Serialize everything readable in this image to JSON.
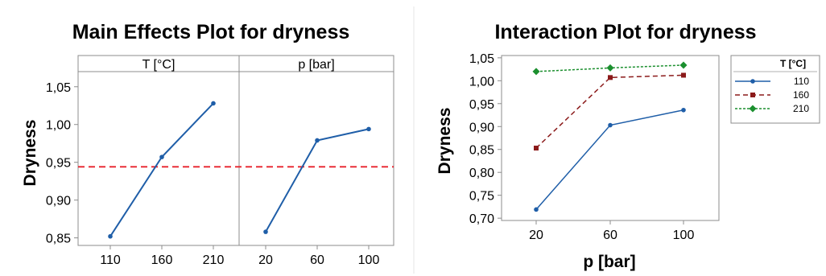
{
  "colors": {
    "blue": "#1f5ea8",
    "red": "#8b1a1a",
    "green": "#1b8f2e",
    "reference": "#e8202a",
    "frame": "#8c8c8c"
  },
  "chart_data": [
    {
      "type": "line",
      "title": "Main Effects Plot for dryness",
      "ylabel": "Dryness",
      "ylim": [
        0.84,
        1.07
      ],
      "yticks": [
        "0,85",
        "0,90",
        "0,95",
        "1,00",
        "1,05"
      ],
      "yticks_values": [
        0.85,
        0.9,
        0.95,
        1.0,
        1.05
      ],
      "reference_line": 0.944,
      "grid": false,
      "panels": [
        {
          "strip": "T [°C]",
          "categories": [
            "110",
            "160",
            "210"
          ],
          "values": [
            0.852,
            0.957,
            1.028
          ]
        },
        {
          "strip": "p [bar]",
          "categories": [
            "20",
            "60",
            "100"
          ],
          "values": [
            0.858,
            0.979,
            0.994
          ]
        }
      ]
    },
    {
      "type": "line",
      "title": "Interaction Plot for dryness",
      "xlabel": "p [bar]",
      "ylabel": "Dryness",
      "categories": [
        "20",
        "60",
        "100"
      ],
      "ylim": [
        0.695,
        1.055
      ],
      "yticks": [
        "0,70",
        "0,75",
        "0,80",
        "0,85",
        "0,90",
        "0,95",
        "1,00",
        "1,05"
      ],
      "yticks_values": [
        0.7,
        0.75,
        0.8,
        0.85,
        0.9,
        0.95,
        1.0,
        1.05
      ],
      "legend_title": "T [°C]",
      "legend_position": "right",
      "grid": false,
      "series": [
        {
          "name": "110",
          "values": [
            0.719,
            0.903,
            0.936
          ],
          "style": "solid",
          "marker": "circle"
        },
        {
          "name": "160",
          "values": [
            0.853,
            1.007,
            1.012
          ],
          "style": "dashed",
          "marker": "square"
        },
        {
          "name": "210",
          "values": [
            1.02,
            1.028,
            1.034
          ],
          "style": "dotted",
          "marker": "diamond"
        }
      ]
    }
  ]
}
